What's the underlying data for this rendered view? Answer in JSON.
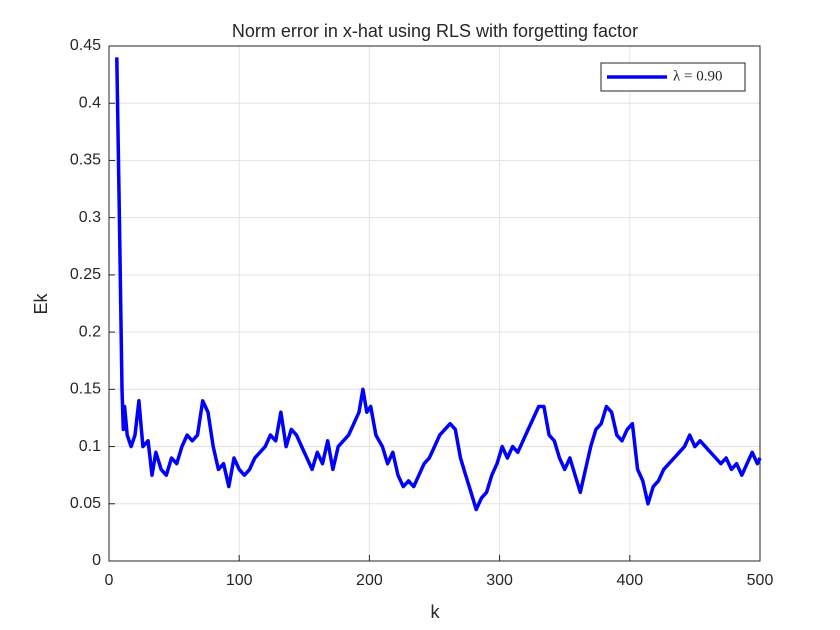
{
  "chart_data": {
    "type": "line",
    "title": "Norm error in x-hat using RLS with forgetting factor",
    "x_label": "k",
    "y_label": "Ek",
    "xlim": [
      0,
      500
    ],
    "xticks": [
      0,
      100,
      200,
      300,
      400,
      500
    ],
    "ylim": [
      0,
      0.45
    ],
    "yticks": [
      0,
      0.05,
      0.1,
      0.15,
      0.2,
      0.25,
      0.3,
      0.35,
      0.4,
      0.45
    ],
    "grid": true,
    "legend_position": "northeast",
    "x": [
      6,
      8,
      10,
      11,
      12,
      14,
      17,
      20,
      23,
      26,
      30,
      33,
      36,
      40,
      44,
      48,
      52,
      56,
      60,
      64,
      68,
      72,
      76,
      80,
      84,
      88,
      92,
      96,
      100,
      104,
      108,
      112,
      116,
      120,
      124,
      128,
      132,
      136,
      140,
      144,
      148,
      152,
      156,
      160,
      164,
      168,
      172,
      176,
      180,
      184,
      188,
      192,
      195,
      198,
      201,
      205,
      210,
      214,
      218,
      222,
      226,
      230,
      234,
      238,
      242,
      246,
      250,
      254,
      258,
      262,
      266,
      270,
      274,
      278,
      282,
      286,
      290,
      294,
      298,
      302,
      306,
      310,
      314,
      318,
      322,
      326,
      330,
      334,
      338,
      342,
      346,
      350,
      354,
      358,
      362,
      366,
      370,
      374,
      378,
      382,
      386,
      390,
      394,
      398,
      402,
      406,
      410,
      414,
      418,
      422,
      426,
      430,
      434,
      438,
      442,
      446,
      450,
      454,
      458,
      462,
      466,
      470,
      474,
      478,
      482,
      486,
      490,
      494,
      498,
      500
    ],
    "series": [
      {
        "name": "λ = 0.90",
        "color": "#0000ff",
        "values": [
          0.44,
          0.3,
          0.15,
          0.115,
          0.135,
          0.11,
          0.1,
          0.11,
          0.14,
          0.1,
          0.105,
          0.075,
          0.095,
          0.08,
          0.075,
          0.09,
          0.085,
          0.1,
          0.11,
          0.105,
          0.11,
          0.14,
          0.13,
          0.1,
          0.08,
          0.085,
          0.065,
          0.09,
          0.08,
          0.075,
          0.08,
          0.09,
          0.095,
          0.1,
          0.11,
          0.105,
          0.13,
          0.1,
          0.115,
          0.11,
          0.1,
          0.09,
          0.08,
          0.095,
          0.085,
          0.105,
          0.08,
          0.1,
          0.105,
          0.11,
          0.12,
          0.13,
          0.15,
          0.13,
          0.135,
          0.11,
          0.1,
          0.085,
          0.095,
          0.075,
          0.065,
          0.07,
          0.065,
          0.075,
          0.085,
          0.09,
          0.1,
          0.11,
          0.115,
          0.12,
          0.115,
          0.09,
          0.075,
          0.06,
          0.045,
          0.055,
          0.06,
          0.075,
          0.085,
          0.1,
          0.09,
          0.1,
          0.095,
          0.105,
          0.115,
          0.125,
          0.135,
          0.135,
          0.11,
          0.105,
          0.09,
          0.08,
          0.09,
          0.075,
          0.06,
          0.08,
          0.1,
          0.115,
          0.12,
          0.135,
          0.13,
          0.11,
          0.105,
          0.115,
          0.12,
          0.08,
          0.07,
          0.05,
          0.065,
          0.07,
          0.08,
          0.085,
          0.09,
          0.095,
          0.1,
          0.11,
          0.1,
          0.105,
          0.1,
          0.095,
          0.09,
          0.085,
          0.09,
          0.08,
          0.085,
          0.075,
          0.085,
          0.095,
          0.085,
          0.09
        ]
      }
    ]
  }
}
